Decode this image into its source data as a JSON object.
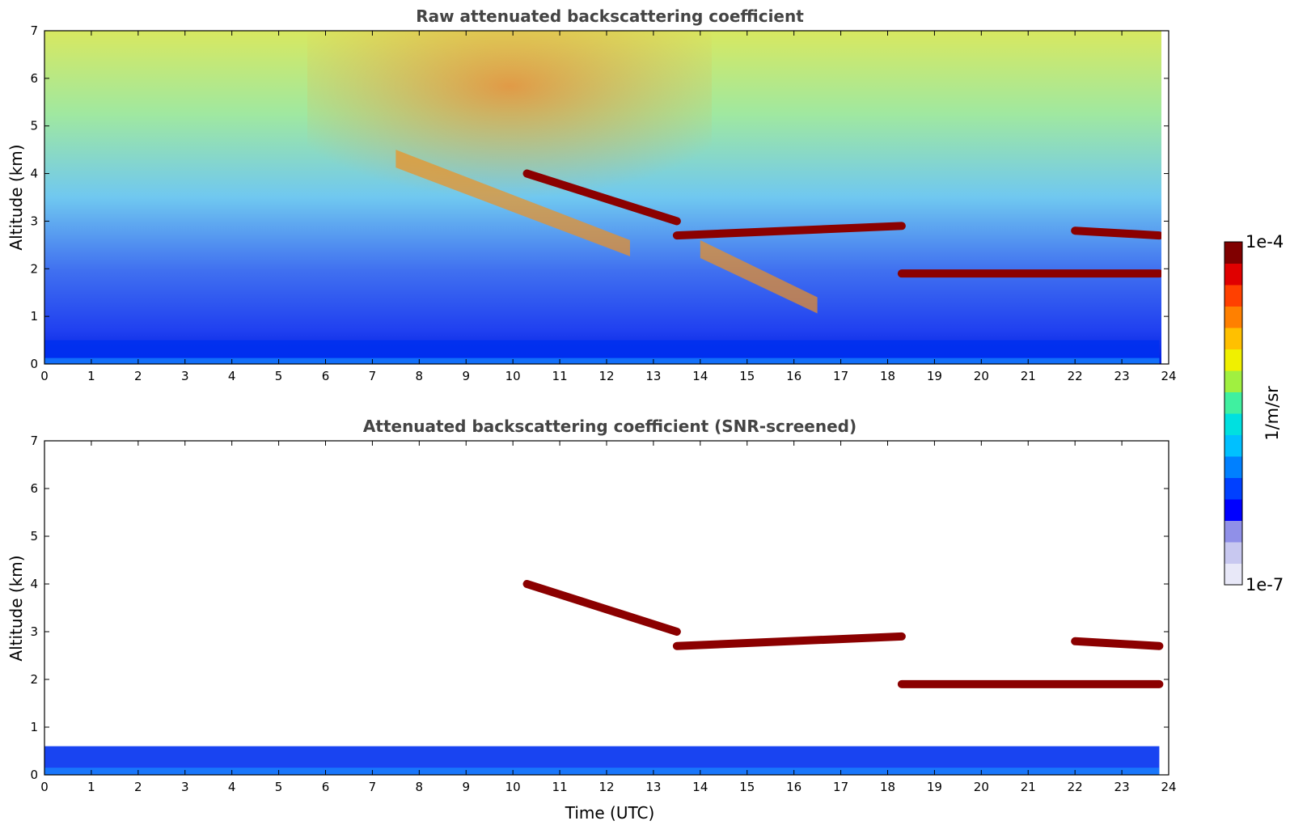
{
  "chart_data": [
    {
      "type": "heatmap",
      "title": "Raw attenuated backscattering coefficient",
      "xlabel": "",
      "ylabel": "Altitude (km)",
      "xlim": [
        0,
        24
      ],
      "ylim": [
        0,
        7
      ],
      "x_ticks": [
        0,
        1,
        2,
        3,
        4,
        5,
        6,
        7,
        8,
        9,
        10,
        11,
        12,
        13,
        14,
        15,
        16,
        17,
        18,
        19,
        20,
        21,
        22,
        23,
        24
      ],
      "y_ticks": [
        0,
        1,
        2,
        3,
        4,
        5,
        6,
        7
      ],
      "features": [
        {
          "name": "boundary layer",
          "x": [
            0,
            23.8
          ],
          "y": [
            0,
            0.5
          ],
          "level": "low"
        },
        {
          "name": "cloud layer",
          "x": [
            10.3,
            13.5
          ],
          "y": [
            4.0,
            3.0
          ],
          "level": "high"
        },
        {
          "name": "cloud layer",
          "x": [
            13.5,
            18.3
          ],
          "y": [
            2.7,
            2.9
          ],
          "level": "high"
        },
        {
          "name": "cloud layer",
          "x": [
            18.3,
            23.8
          ],
          "y": [
            1.9,
            1.9
          ],
          "level": "high"
        },
        {
          "name": "cloud layer",
          "x": [
            22.0,
            23.8
          ],
          "y": [
            2.8,
            2.7
          ],
          "level": "high"
        },
        {
          "name": "precipitation virga",
          "x": [
            7.5,
            12.5
          ],
          "y": [
            4.5,
            2.5
          ],
          "level": "medium"
        },
        {
          "name": "precipitation virga",
          "x": [
            14.0,
            16.5
          ],
          "y": [
            2.6,
            1.3
          ],
          "level": "medium"
        }
      ]
    },
    {
      "type": "heatmap",
      "title": "Attenuated backscattering coefficient (SNR-screened)",
      "xlabel": "Time (UTC)",
      "ylabel": "Altitude (km)",
      "xlim": [
        0,
        24
      ],
      "ylim": [
        0,
        7
      ],
      "x_ticks": [
        0,
        1,
        2,
        3,
        4,
        5,
        6,
        7,
        8,
        9,
        10,
        11,
        12,
        13,
        14,
        15,
        16,
        17,
        18,
        19,
        20,
        21,
        22,
        23,
        24
      ],
      "y_ticks": [
        0,
        1,
        2,
        3,
        4,
        5,
        6,
        7
      ],
      "features": [
        {
          "name": "boundary layer",
          "x": [
            0,
            23.8
          ],
          "y": [
            0,
            0.6
          ],
          "level": "low"
        },
        {
          "name": "cloud layer",
          "x": [
            10.3,
            13.5
          ],
          "y": [
            4.0,
            3.0
          ],
          "level": "high"
        },
        {
          "name": "cloud layer",
          "x": [
            13.5,
            18.3
          ],
          "y": [
            2.7,
            2.9
          ],
          "level": "high"
        },
        {
          "name": "cloud layer",
          "x": [
            18.3,
            23.8
          ],
          "y": [
            1.9,
            1.9
          ],
          "level": "high"
        },
        {
          "name": "cloud layer",
          "x": [
            22.0,
            23.8
          ],
          "y": [
            2.8,
            2.7
          ],
          "level": "high"
        }
      ]
    }
  ],
  "colorbar": {
    "max_label": "1e-4",
    "min_label": "1e-7",
    "unit_label": "1/m/sr",
    "colors": [
      "#e8e8f8",
      "#c8c8f0",
      "#9090e8",
      "#0000ff",
      "#0040ff",
      "#0080ff",
      "#00c0ff",
      "#00e0e0",
      "#40f0a0",
      "#a0f040",
      "#f0f000",
      "#ffc000",
      "#ff8000",
      "#ff4000",
      "#e00000",
      "#800000"
    ]
  }
}
